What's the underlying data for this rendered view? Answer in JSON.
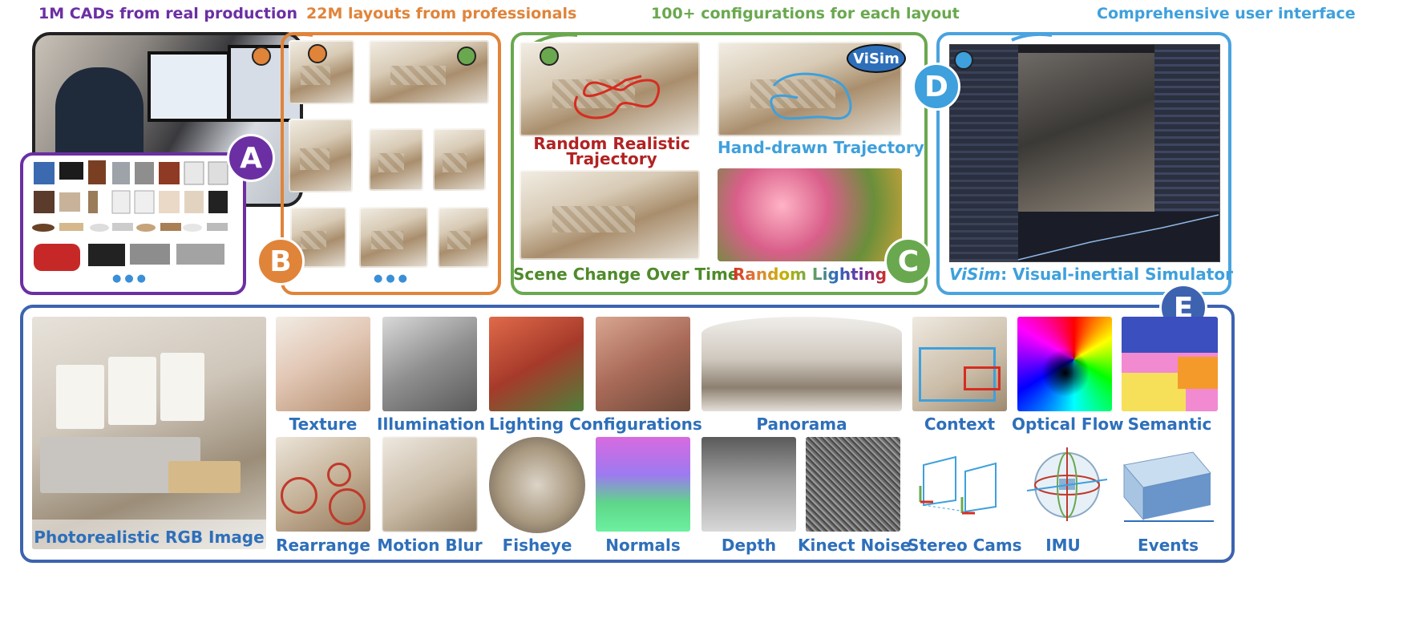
{
  "headings": {
    "a": "1M CADs from real production",
    "b": "22M layouts from professionals",
    "c": "100+ configurations for each layout",
    "d": "Comprehensive user interface"
  },
  "badges": {
    "a": "A",
    "b": "B",
    "c": "C",
    "d": "D",
    "e": "E"
  },
  "colors": {
    "purple": "#6b2fa3",
    "orange": "#e0843a",
    "green": "#6aa84f",
    "blue": "#4aa3df",
    "navy": "#3d63b0",
    "caption_blue": "#2e6fba",
    "red": "#c0392b"
  },
  "ellipsis": "●●●",
  "configs": {
    "random_trajectory": "Random Realistic Trajectory",
    "handdrawn": "Hand-drawn Trajectory",
    "scene_change": "Scene Change Over Time",
    "random_lighting": "Random Lighting"
  },
  "visim": {
    "tag": "ViSim",
    "caption_name": "ViSim",
    "caption_rest": ": Visual-inertial Simulator"
  },
  "outputs": [
    "Photorealistic RGB Image",
    "Texture",
    "Illumination",
    "Lighting Configurations",
    "Panorama",
    "Context",
    "Optical Flow",
    "Semantic",
    "Rearrange",
    "Motion Blur",
    "Fisheye",
    "Normals",
    "Depth",
    "Kinect Noise",
    "Stereo Cams",
    "IMU",
    "Events"
  ]
}
